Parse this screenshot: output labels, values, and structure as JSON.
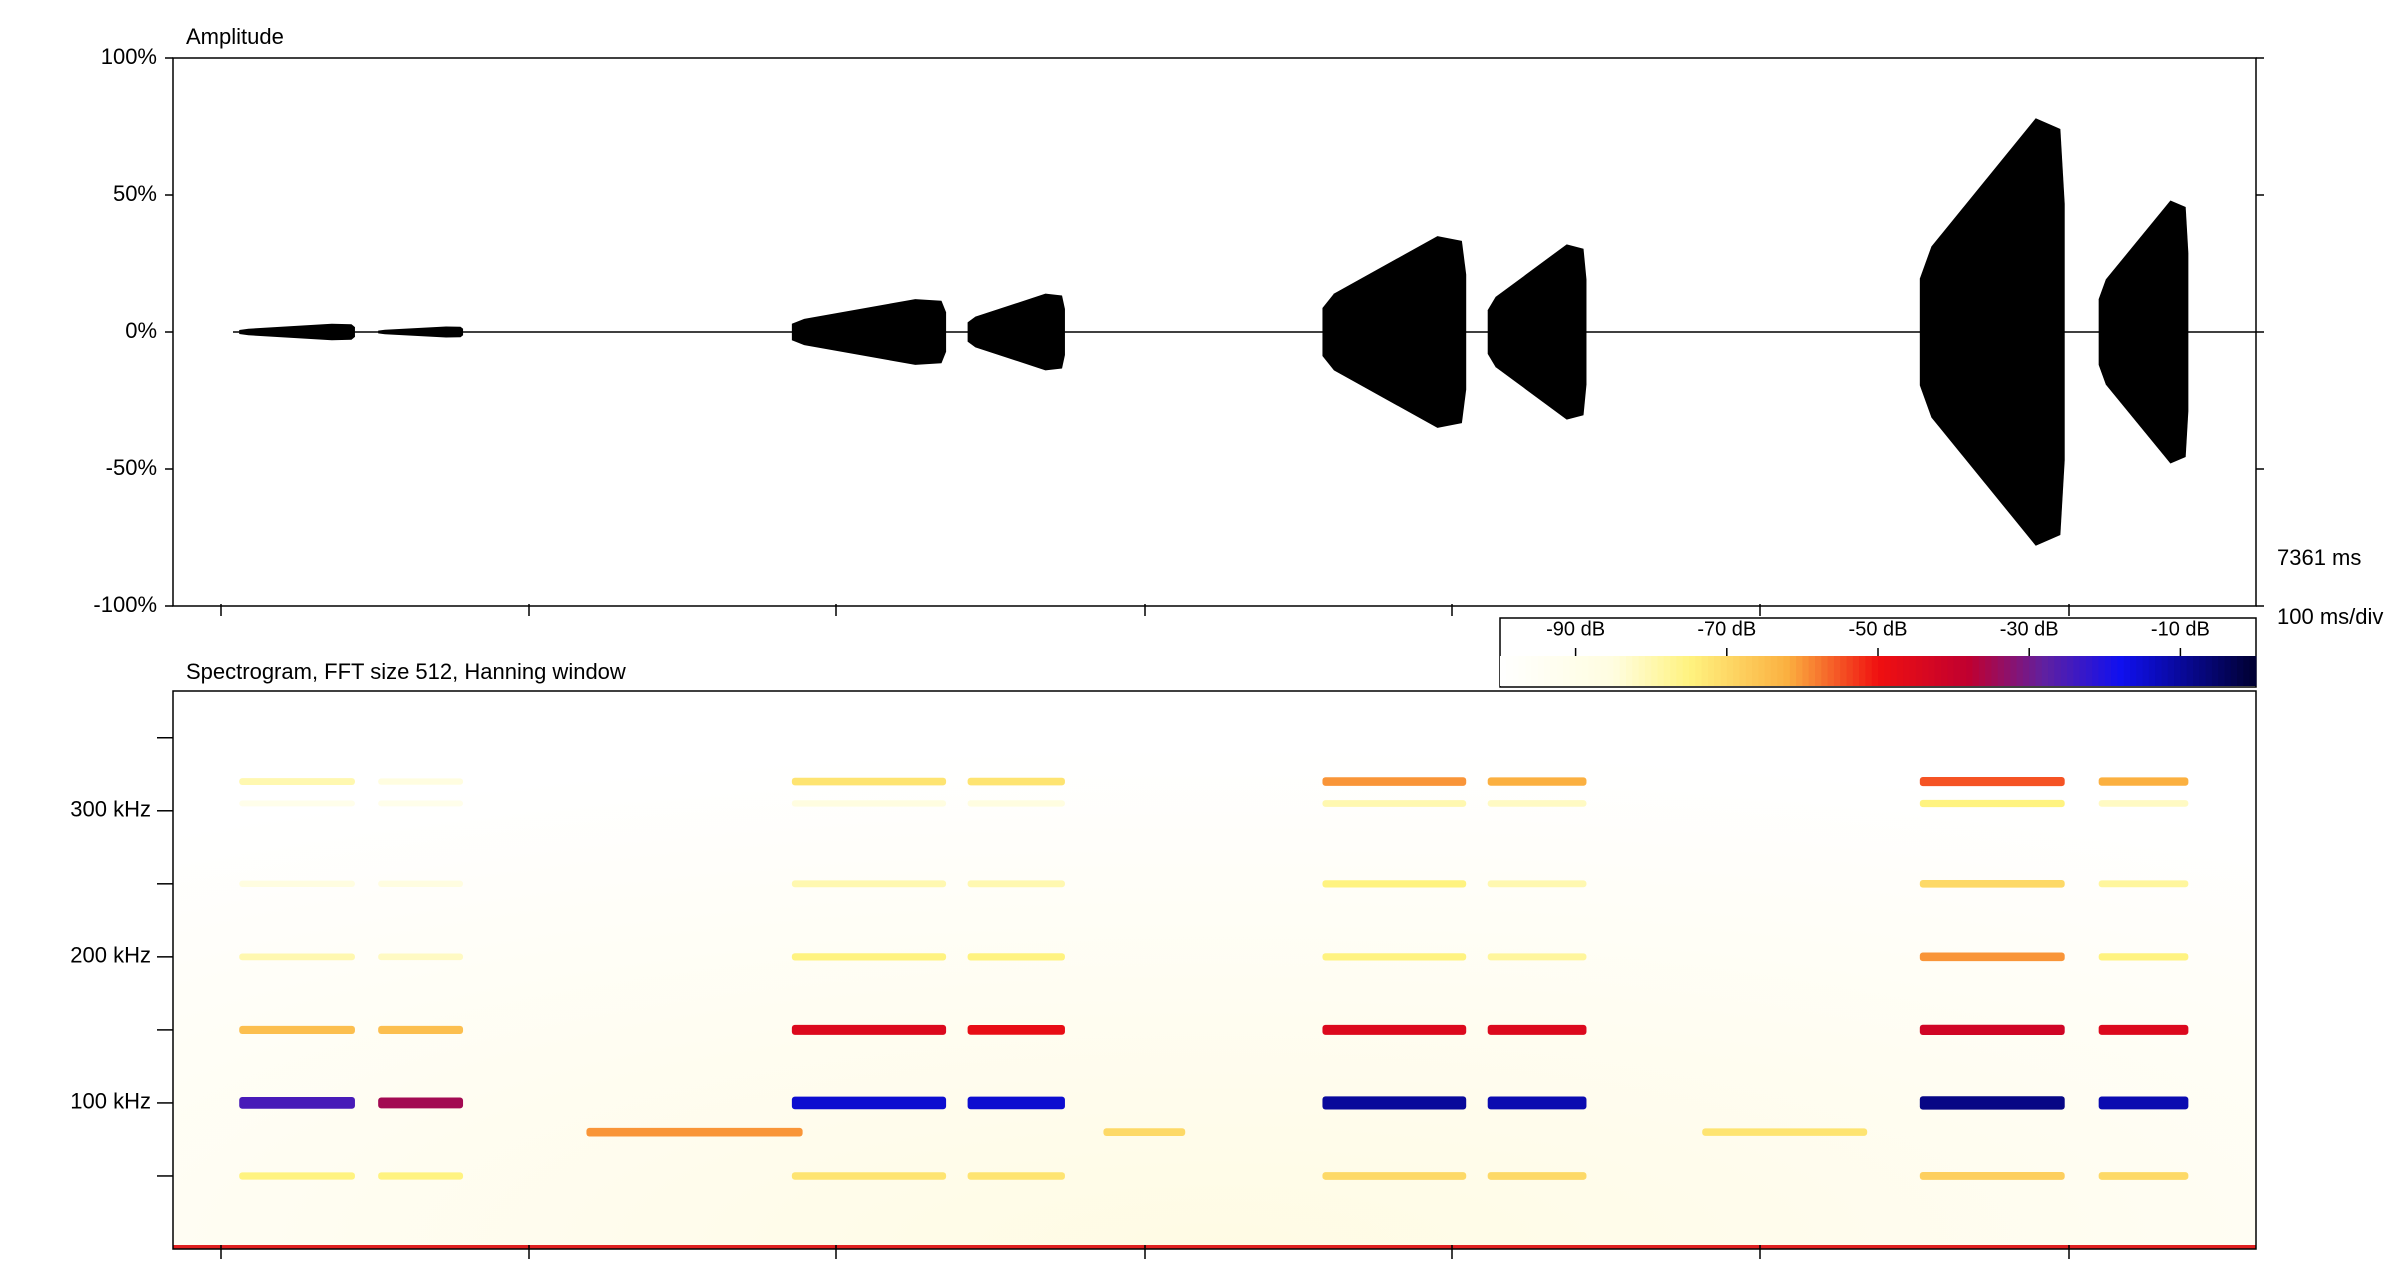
{
  "chart_data": [
    {
      "type": "waveform",
      "title": "Amplitude",
      "color": "#000000",
      "xlim": [
        0,
        7361
      ],
      "ylim": [
        -100,
        100
      ],
      "yticks": [
        {
          "value": 100,
          "label": "100%"
        },
        {
          "value": 50,
          "label": "50%"
        },
        {
          "value": 0,
          "label": "0%"
        },
        {
          "value": -50,
          "label": "-50%"
        },
        {
          "value": -100,
          "label": "-100%"
        }
      ],
      "duration_label": "7361 ms",
      "division_label": "100 ms/div",
      "bursts": [
        {
          "start": 234,
          "end": 643,
          "peak": 3
        },
        {
          "start": 725,
          "end": 1025,
          "peak": 2
        },
        {
          "start": 2187,
          "end": 2732,
          "peak": 12
        },
        {
          "start": 2808,
          "end": 3152,
          "peak": 14
        },
        {
          "start": 4062,
          "end": 4570,
          "peak": 35
        },
        {
          "start": 4646,
          "end": 4995,
          "peak": 32
        },
        {
          "start": 6173,
          "end": 6685,
          "peak": 78
        },
        {
          "start": 6805,
          "end": 7122,
          "peak": 48
        }
      ]
    },
    {
      "type": "spectrogram",
      "title": "Spectrogram, FFT size 512, Hanning window",
      "xlim": [
        0,
        7361
      ],
      "ylim": [
        0,
        382
      ],
      "yticks": [
        {
          "value": 100,
          "label": "100 kHz"
        },
        {
          "value": 200,
          "label": "200 kHz"
        },
        {
          "value": 300,
          "label": "300 kHz"
        }
      ],
      "yminorticks": [
        50,
        150,
        250,
        350
      ],
      "colorbar": {
        "lim": [
          -100,
          0
        ],
        "ticks": [
          {
            "value": -90,
            "label": "-90 dB"
          },
          {
            "value": -70,
            "label": "-70 dB"
          },
          {
            "value": -50,
            "label": "-50 dB"
          },
          {
            "value": -30,
            "label": "-30 dB"
          },
          {
            "value": -10,
            "label": "-10 dB"
          }
        ],
        "stops": [
          {
            "value": -100,
            "color": "#ffffff"
          },
          {
            "value": -85,
            "color": "#fffde0"
          },
          {
            "value": -75,
            "color": "#fff380"
          },
          {
            "value": -62,
            "color": "#fbb040"
          },
          {
            "value": -50,
            "color": "#f01010"
          },
          {
            "value": -38,
            "color": "#c00030"
          },
          {
            "value": -28,
            "color": "#6020a0"
          },
          {
            "value": -18,
            "color": "#1010f0"
          },
          {
            "value": 0,
            "color": "#000030"
          }
        ]
      },
      "frequencies": [
        50,
        80,
        100,
        150,
        200,
        250,
        305,
        320
      ],
      "calls": [
        {
          "start": 234,
          "end": 643,
          "levels": [
            -75,
            null,
            -25,
            -65,
            -80,
            -85,
            -90,
            -80
          ]
        },
        {
          "start": 725,
          "end": 1025,
          "levels": [
            -75,
            null,
            -35,
            -65,
            -82,
            -85,
            -90,
            -85
          ]
        },
        {
          "start": 1461,
          "end": 2225,
          "levels": [
            null,
            -60,
            null,
            null,
            null,
            null,
            null,
            null
          ]
        },
        {
          "start": 2187,
          "end": 2732,
          "levels": [
            -72,
            null,
            -15,
            -45,
            -75,
            -80,
            -85,
            -72
          ]
        },
        {
          "start": 2808,
          "end": 3152,
          "levels": [
            -72,
            null,
            -15,
            -48,
            -75,
            -80,
            -85,
            -72
          ]
        },
        {
          "start": 3288,
          "end": 3577,
          "levels": [
            null,
            -70,
            null,
            null,
            null,
            null,
            null,
            null
          ]
        },
        {
          "start": 4062,
          "end": 4570,
          "levels": [
            -70,
            null,
            -10,
            -45,
            -75,
            -75,
            -80,
            -60
          ]
        },
        {
          "start": 4646,
          "end": 4995,
          "levels": [
            -70,
            null,
            -12,
            -45,
            -78,
            -80,
            -82,
            -62
          ]
        },
        {
          "start": 5404,
          "end": 5987,
          "levels": [
            null,
            -72,
            null,
            null,
            null,
            null,
            null,
            null
          ]
        },
        {
          "start": 6173,
          "end": 6685,
          "levels": [
            -68,
            null,
            -8,
            -42,
            -60,
            -70,
            -75,
            -55
          ]
        },
        {
          "start": 6805,
          "end": 7122,
          "levels": [
            -70,
            null,
            -12,
            -45,
            -75,
            -78,
            -82,
            -62
          ]
        }
      ]
    }
  ]
}
